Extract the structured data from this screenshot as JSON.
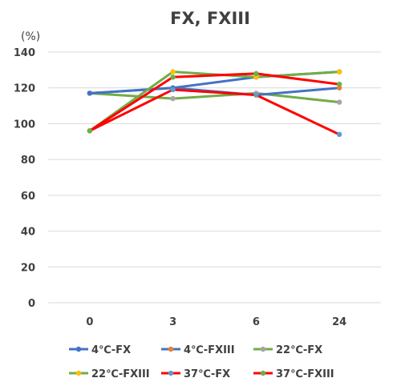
{
  "chart_data": {
    "type": "line",
    "title": "FX, FXIII",
    "unit_label": "(%)",
    "xlabel": "",
    "ylabel": "",
    "categories": [
      "0",
      "3",
      "6",
      "24"
    ],
    "ylim": [
      0,
      140
    ],
    "yticks": [
      0,
      20,
      40,
      60,
      80,
      100,
      120,
      140
    ],
    "grid": true,
    "legend_position": "bottom",
    "series": [
      {
        "name": "4℃-FX",
        "color": "#4472c4",
        "values": [
          117,
          120,
          126,
          129
        ]
      },
      {
        "name": "4℃-FXIII",
        "color": "#ed7d31",
        "values": [
          117,
          120,
          116,
          120
        ]
      },
      {
        "name": "22℃-FX",
        "color": "#a5a5a5",
        "values": [
          117,
          114,
          117,
          112
        ]
      },
      {
        "name": "22℃-FXIII",
        "color": "#ffc000",
        "values": [
          96,
          129,
          126,
          129
        ]
      },
      {
        "name": "37℃-FX",
        "color": "#5b9bd5",
        "values": [
          96,
          119,
          116,
          94
        ]
      },
      {
        "name": "37℃-FXIII",
        "color": "#70ad47",
        "values": [
          96,
          126,
          128,
          122
        ]
      }
    ],
    "draw_order": [
      {
        "series": 2,
        "line_color": "#70ad47"
      },
      {
        "series": 1,
        "line_color": "#4472c4"
      },
      {
        "series": 0,
        "line_color": "#4472c4"
      },
      {
        "series": 3,
        "line_color": "#70ad47"
      },
      {
        "series": 4,
        "line_color": "#ff0000"
      },
      {
        "series": 5,
        "line_color": "#ff0000"
      }
    ]
  }
}
